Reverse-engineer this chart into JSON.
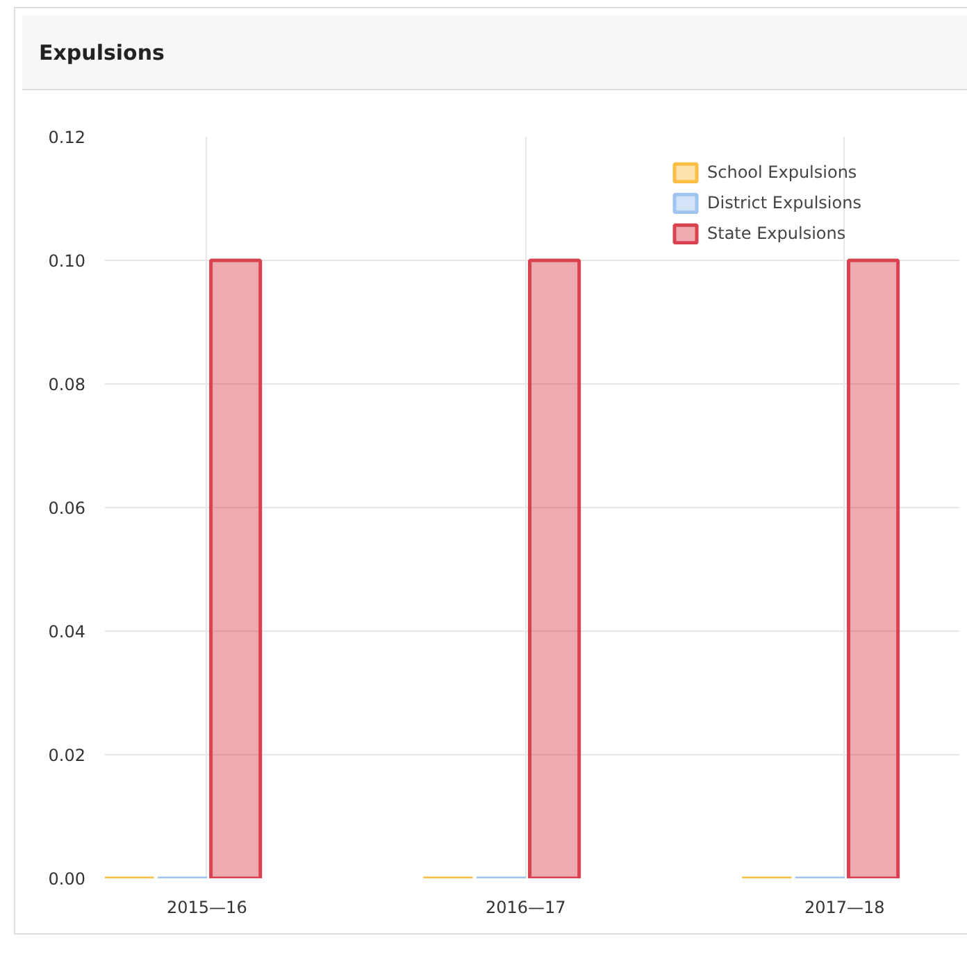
{
  "chart_data": {
    "type": "bar",
    "title": "Expulsions",
    "categories": [
      "2015—16",
      "2016—17",
      "2017—18"
    ],
    "series": [
      {
        "name": "School Expulsions",
        "color": "#fbbf45",
        "values": [
          0,
          0,
          0
        ]
      },
      {
        "name": "District Expulsions",
        "color": "#a0c4f0",
        "values": [
          0,
          0,
          0
        ]
      },
      {
        "name": "State Expulsions",
        "color": "#d9424f",
        "values": [
          0.1,
          0.1,
          0.1
        ]
      }
    ],
    "ylim": [
      0,
      0.12
    ],
    "yticks": [
      {
        "value": 0,
        "label": "0.00"
      },
      0.02,
      0.04,
      0.06,
      0.08,
      {
        "value": 0.1,
        "label": "0.10"
      },
      0.12
    ],
    "grid": true,
    "legend": "top right"
  }
}
